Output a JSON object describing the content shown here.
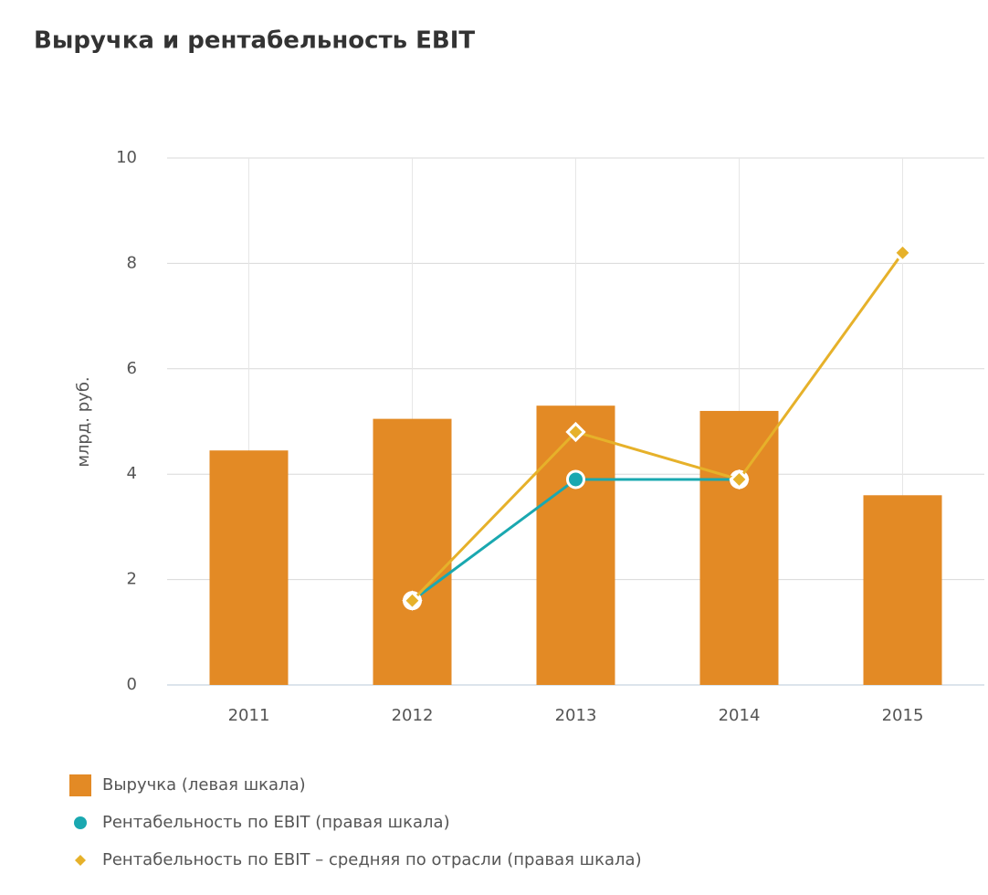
{
  "chart_data": {
    "type": "bar",
    "title": "Выручка и рентабельность EBIT",
    "y_label": "млрд. руб.",
    "categories": [
      "2011",
      "2012",
      "2013",
      "2014",
      "2015"
    ],
    "series": [
      {
        "name": "Выручка (левая шкала)",
        "type": "bar",
        "color": "#e38a25",
        "values": [
          4.45,
          5.05,
          5.3,
          5.2,
          3.6
        ]
      },
      {
        "name": "Рентабельность по EBIT (правая шкала)",
        "type": "line",
        "color": "#1aa8b0",
        "values": [
          null,
          1.6,
          3.9,
          3.9,
          null
        ]
      },
      {
        "name": "Рентабельность по EBIT – средняя по отрасли (правая шкала)",
        "type": "line",
        "color": "#e6b12a",
        "values": [
          null,
          1.6,
          4.8,
          3.9,
          8.2
        ]
      }
    ],
    "ylim": [
      0,
      10
    ],
    "yticks": [
      0,
      2,
      4,
      6,
      8,
      10
    ],
    "grid": true
  }
}
